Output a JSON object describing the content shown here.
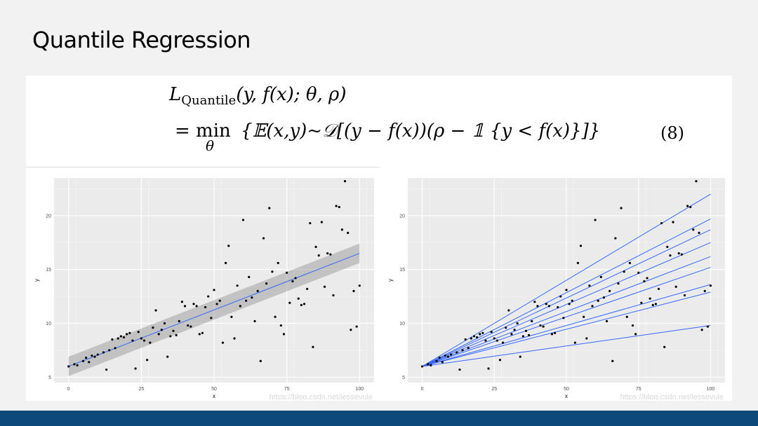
{
  "slide": {
    "title": "Quantile Regression"
  },
  "formula": {
    "line1_L": "L",
    "line1_sub": "Quantile",
    "line1_args": "(y, f(x); θ, ρ)",
    "line2_eq": "= min",
    "line2_theta": "θ",
    "line2_body": "{𝔼(x,y)~𝒟[(y − f(x))(ρ − 𝟙 {y < f(x)}]}",
    "number": "(8)"
  },
  "watermark": "https://blog.csdn.net/jesseyule",
  "colors": {
    "footer": "#0d4a7b",
    "line": "#3366ff",
    "panel_bg": "#ebebeb"
  },
  "chart_data": [
    {
      "type": "scatter",
      "title": "",
      "xlabel": "x",
      "ylabel": "y",
      "xlim": [
        -5,
        105
      ],
      "ylim": [
        4.5,
        23.5
      ],
      "xticks": [
        0,
        25,
        50,
        75,
        100
      ],
      "yticks": [
        5,
        10,
        15,
        20
      ],
      "grid": true,
      "points": [
        [
          0,
          6
        ],
        [
          2,
          6.2
        ],
        [
          3,
          6.1
        ],
        [
          5,
          6.5
        ],
        [
          6,
          6.8
        ],
        [
          7,
          6.4
        ],
        [
          8,
          7
        ],
        [
          9,
          6.9
        ],
        [
          10,
          7.1
        ],
        [
          12,
          7.3
        ],
        [
          13,
          5.7
        ],
        [
          14,
          7.5
        ],
        [
          15,
          8.5
        ],
        [
          16,
          7.7
        ],
        [
          17,
          8.6
        ],
        [
          18,
          8.8
        ],
        [
          19,
          8.7
        ],
        [
          20,
          9.0
        ],
        [
          21,
          9.1
        ],
        [
          22,
          8.4
        ],
        [
          23,
          5.8
        ],
        [
          24,
          9.2
        ],
        [
          25,
          8.6
        ],
        [
          26,
          8.4
        ],
        [
          27,
          6.6
        ],
        [
          28,
          8.2
        ],
        [
          29,
          9.6
        ],
        [
          30,
          11.2
        ],
        [
          31,
          9.0
        ],
        [
          32,
          9.4
        ],
        [
          33,
          10.0
        ],
        [
          34,
          6.9
        ],
        [
          35,
          8.8
        ],
        [
          36,
          9.3
        ],
        [
          37,
          8.9
        ],
        [
          38,
          10.2
        ],
        [
          39,
          12.0
        ],
        [
          40,
          11.6
        ],
        [
          41,
          9.8
        ],
        [
          42,
          9.7
        ],
        [
          43,
          11.8
        ],
        [
          44,
          11.6
        ],
        [
          45,
          9.0
        ],
        [
          46,
          9.1
        ],
        [
          47,
          11.5
        ],
        [
          48,
          12.5
        ],
        [
          49,
          10.5
        ],
        [
          50,
          13.1
        ],
        [
          51,
          11.8
        ],
        [
          52,
          12.1
        ],
        [
          53,
          8.2
        ],
        [
          54,
          15.6
        ],
        [
          55,
          17.2
        ],
        [
          56,
          10.6
        ],
        [
          57,
          8.6
        ],
        [
          58,
          13.5
        ],
        [
          59,
          11.6
        ],
        [
          60,
          19.6
        ],
        [
          61,
          12.1
        ],
        [
          62,
          14.3
        ],
        [
          63,
          12.4
        ],
        [
          64,
          10.2
        ],
        [
          65,
          13.0
        ],
        [
          66,
          6.5
        ],
        [
          67,
          17.9
        ],
        [
          68,
          13.7
        ],
        [
          69,
          20.7
        ],
        [
          70,
          14.8
        ],
        [
          71,
          10.6
        ],
        [
          72,
          15.6
        ],
        [
          73,
          9.8
        ],
        [
          74,
          9.0
        ],
        [
          75,
          14.7
        ],
        [
          76,
          11.9
        ],
        [
          77,
          13.9
        ],
        [
          78,
          14.2
        ],
        [
          79,
          12.3
        ],
        [
          80,
          11.7
        ],
        [
          81,
          11.8
        ],
        [
          82,
          13.2
        ],
        [
          83,
          19.3
        ],
        [
          84,
          7.8
        ],
        [
          85,
          17.1
        ],
        [
          86,
          16.3
        ],
        [
          87,
          19.4
        ],
        [
          88,
          13.4
        ],
        [
          89,
          16.5
        ],
        [
          90,
          16.4
        ],
        [
          91,
          12.6
        ],
        [
          92,
          20.9
        ],
        [
          93,
          20.8
        ],
        [
          94,
          18.7
        ],
        [
          95,
          23.2
        ],
        [
          96,
          18.4
        ],
        [
          97,
          9.4
        ],
        [
          98,
          13.0
        ],
        [
          99,
          9.7
        ],
        [
          100,
          13.5
        ]
      ],
      "fit": {
        "type": "linear",
        "x": [
          0,
          100
        ],
        "y": [
          6.0,
          16.5
        ],
        "band": [
          0.9,
          0.9
        ]
      }
    },
    {
      "type": "scatter",
      "title": "",
      "xlabel": "x",
      "ylabel": "y",
      "xlim": [
        -5,
        105
      ],
      "ylim": [
        4.5,
        23.5
      ],
      "xticks": [
        0,
        25,
        50,
        75,
        100
      ],
      "yticks": [
        5,
        10,
        15,
        20
      ],
      "grid": true,
      "points": "same_as_left",
      "quantile_lines": {
        "x0": 0,
        "y0": 6.0,
        "x1": 100,
        "y1_values": [
          9.8,
          12.9,
          13.6,
          15.2,
          16.2,
          17.5,
          18.7,
          19.7,
          22.0
        ]
      }
    }
  ]
}
